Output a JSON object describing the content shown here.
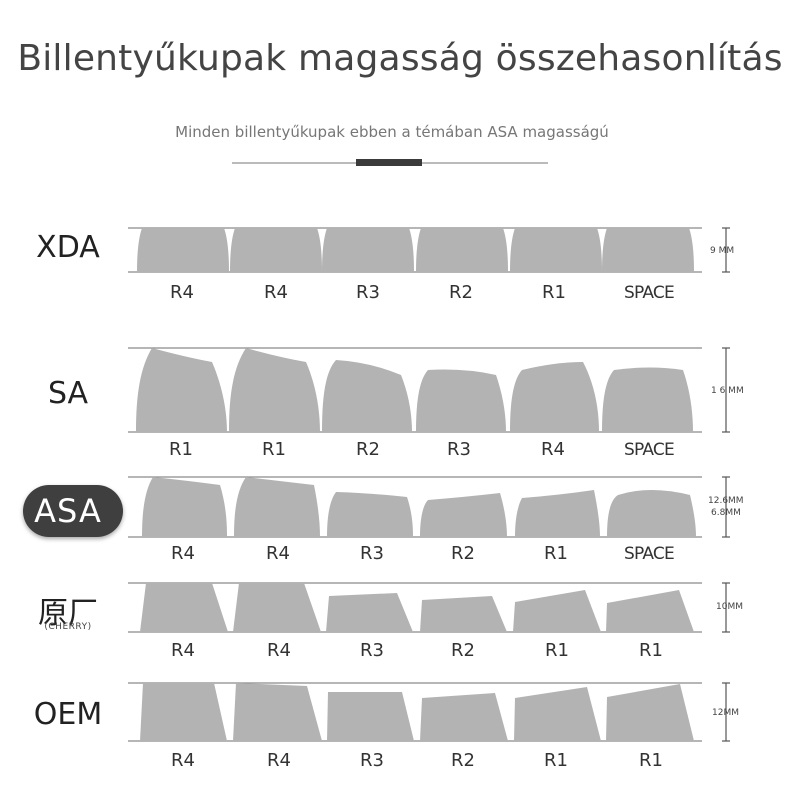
{
  "header": {
    "title": "Billentyűkupak magasság összehasonlítás",
    "subtitle": "Minden billentyűkupak ebben a témában ASA magasságú"
  },
  "profiles": [
    {
      "name": "XDA",
      "height": "9 MM",
      "rows": [
        "R4",
        "R4",
        "R3",
        "R2",
        "R1",
        "SPACE"
      ]
    },
    {
      "name": "SA",
      "height": "1 6 MM",
      "rows": [
        "R1",
        "R1",
        "R2",
        "R3",
        "R4",
        "SPACE"
      ]
    },
    {
      "name": "ASA",
      "height_top": "12.6MM",
      "height_bottom": "6.8MM",
      "rows": [
        "R4",
        "R4",
        "R3",
        "R2",
        "R1",
        "SPACE"
      ]
    },
    {
      "name": "原厂",
      "subname": "(CHERRY)",
      "height": "10MM",
      "rows": [
        "R4",
        "R4",
        "R3",
        "R2",
        "R1",
        "R1"
      ]
    },
    {
      "name": "OEM",
      "height": "12MM",
      "rows": [
        "R4",
        "R4",
        "R3",
        "R2",
        "R1",
        "R1"
      ]
    }
  ],
  "colors": {
    "keycap": "#b3b3b3",
    "badge": "#3f3f3f",
    "accent_bar": "#3b3b3b"
  }
}
